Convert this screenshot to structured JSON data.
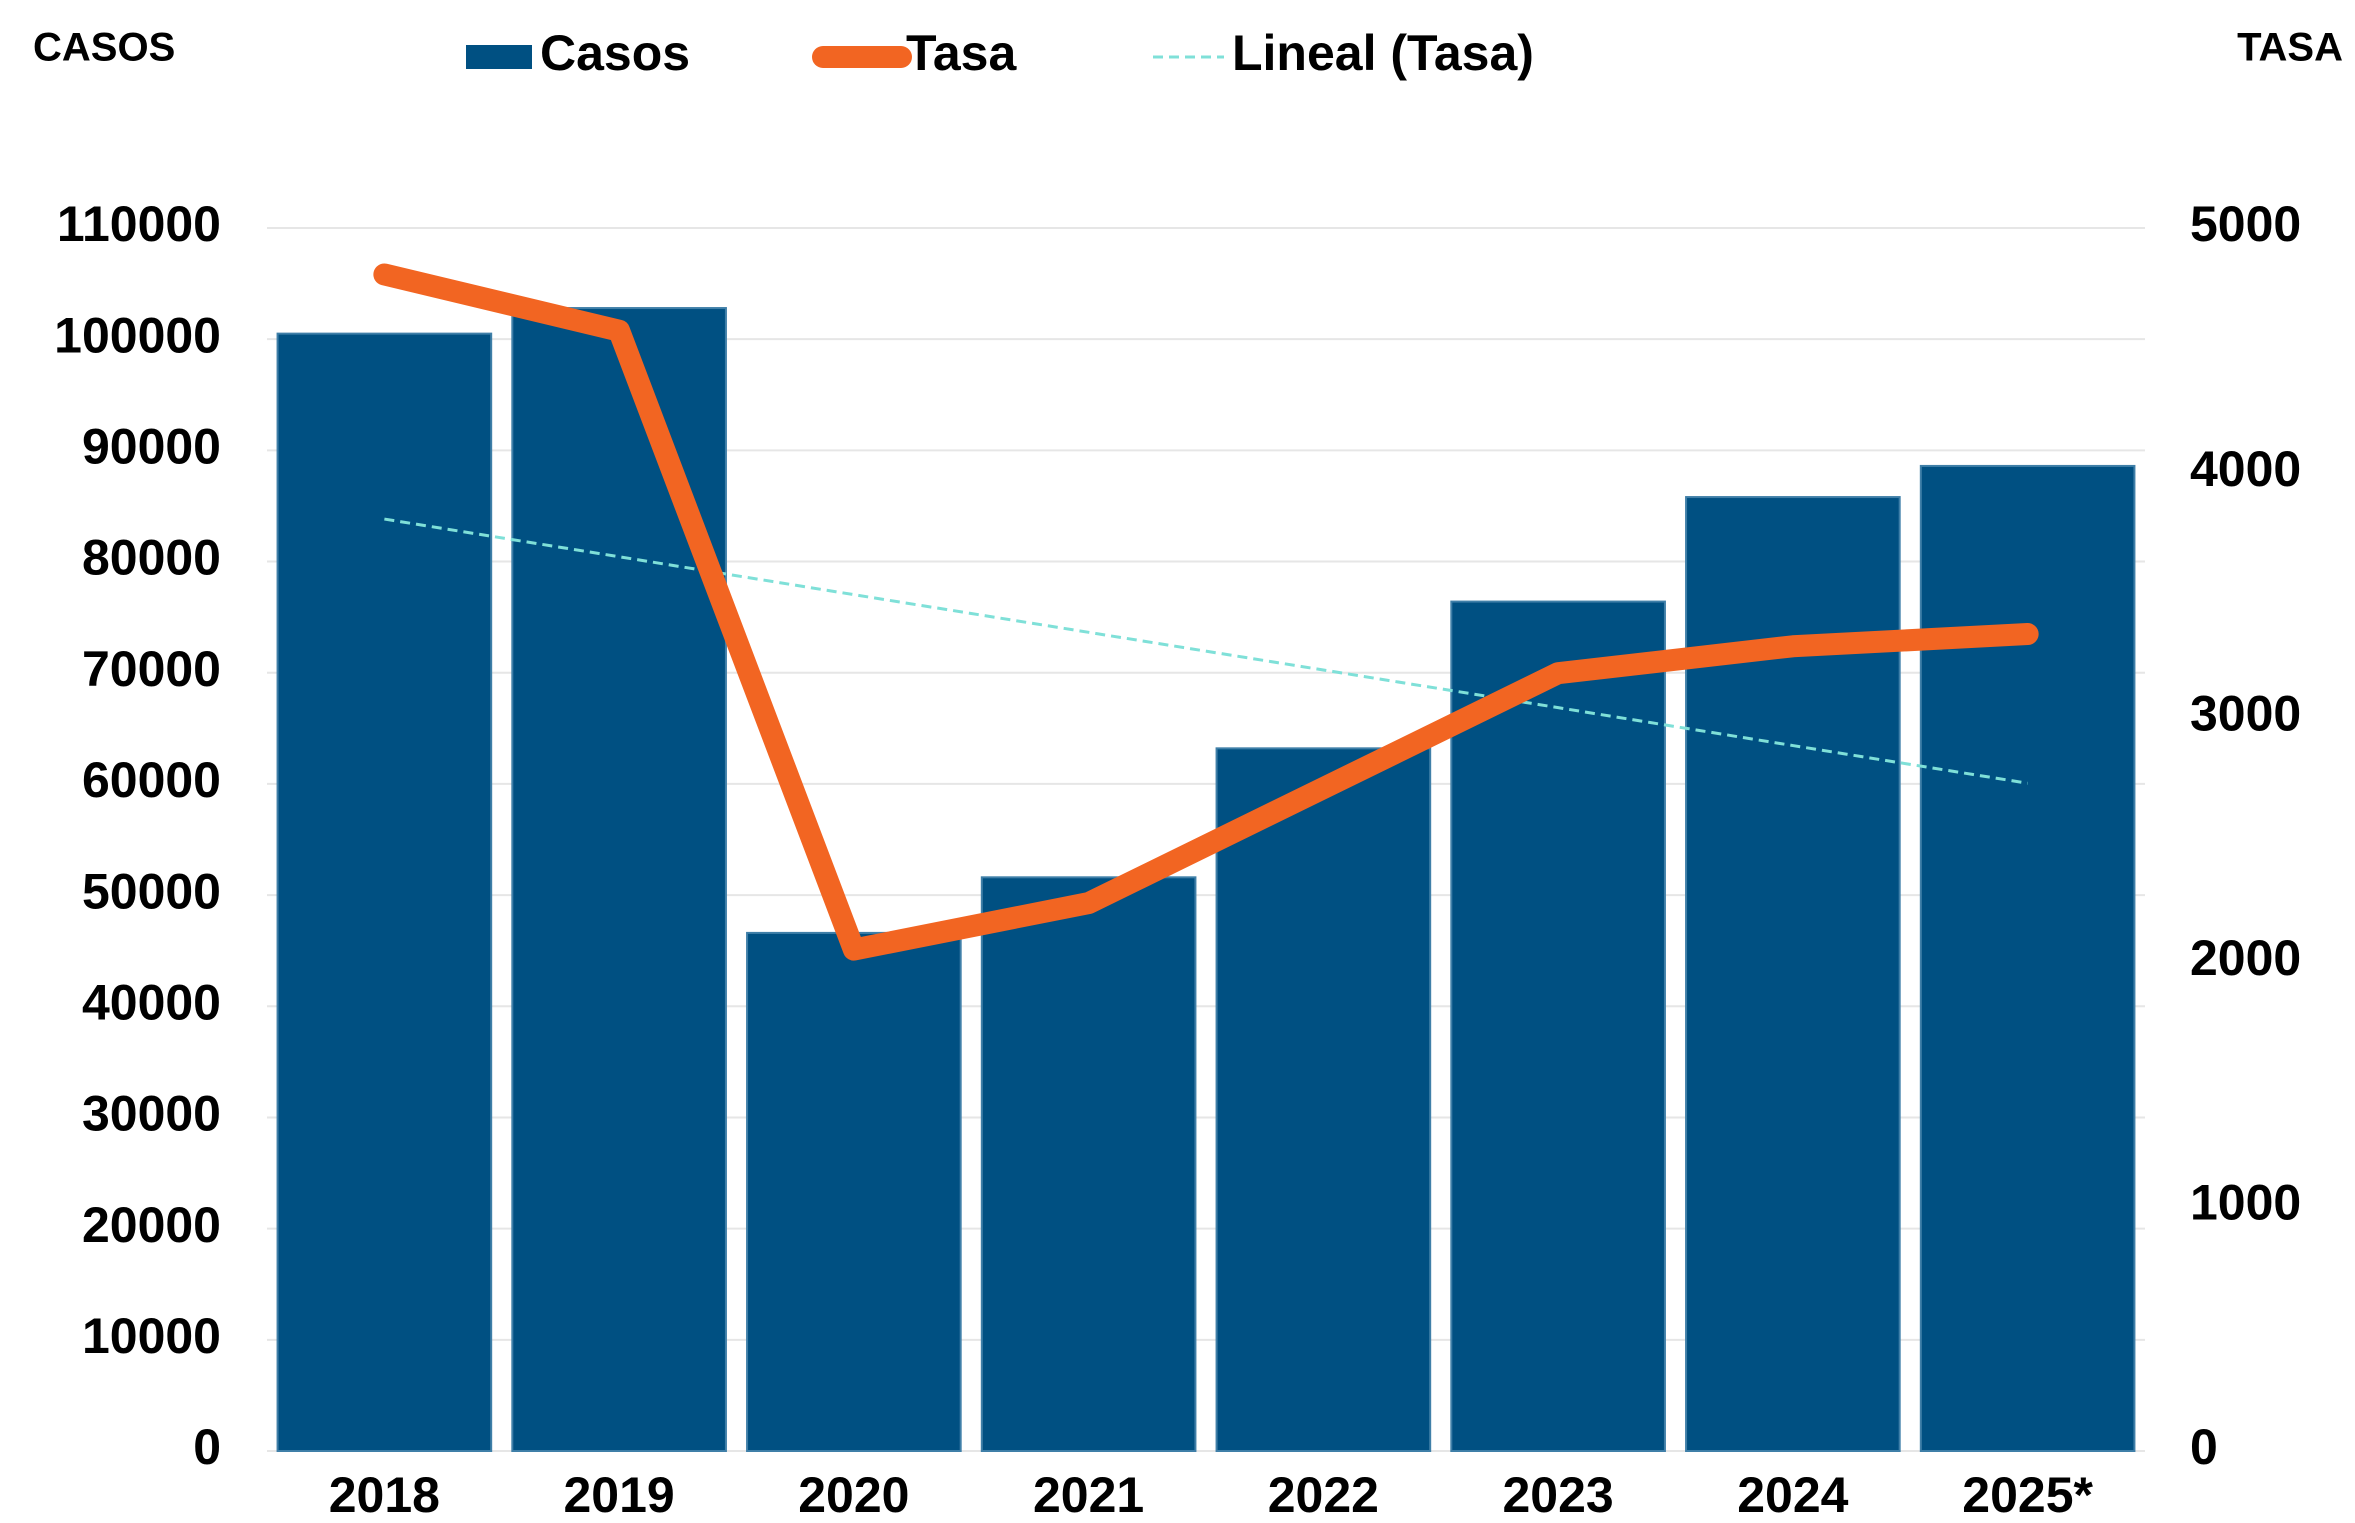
{
  "chart_data": {
    "type": "bar_line",
    "ylabel": "CASOS",
    "y2label": "TASA",
    "categories": [
      "2018",
      "2019",
      "2020",
      "2021",
      "2022",
      "2023",
      "2024",
      "2025*"
    ],
    "series": [
      {
        "name": "Casos",
        "type": "bar",
        "color": "#005082",
        "values": [
          100500,
          102800,
          46600,
          51600,
          63200,
          76400,
          85800,
          88600
        ]
      },
      {
        "name": "Tasa",
        "type": "line",
        "axis": "y2",
        "color": "#f26522",
        "values": [
          4810,
          4580,
          2050,
          2240,
          2710,
          3180,
          3290,
          3340
        ]
      },
      {
        "name": "Lineal (Tasa)",
        "type": "trend",
        "axis": "y2",
        "color": "#7fe0d8",
        "values": [
          3810,
          3656,
          3501,
          3347,
          3193,
          3039,
          2884,
          2730
        ]
      }
    ],
    "ylim": [
      0,
      110000
    ],
    "yticks": [
      0,
      10000,
      20000,
      30000,
      40000,
      50000,
      60000,
      70000,
      80000,
      90000,
      100000,
      110000
    ],
    "y2lim": [
      0,
      5000
    ],
    "y2ticks": [
      0,
      1000,
      2000,
      3000,
      4000,
      5000
    ],
    "grid": true,
    "legend": "top"
  }
}
